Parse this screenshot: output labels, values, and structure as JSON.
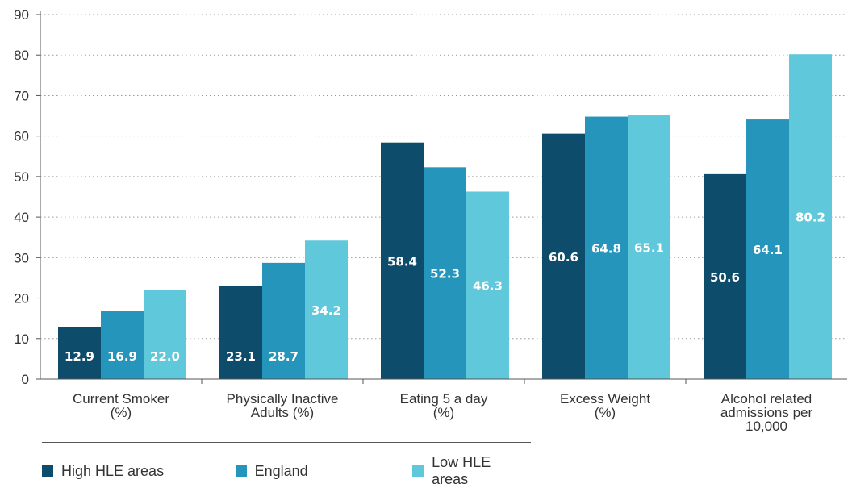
{
  "chart_data": {
    "type": "bar",
    "categories": [
      [
        "Current Smoker",
        "(%)"
      ],
      [
        "Physically Inactive",
        "Adults (%)"
      ],
      [
        "Eating 5 a day",
        "(%)"
      ],
      [
        "Excess Weight",
        "(%)"
      ],
      [
        "Alcohol related",
        "admissions per",
        "10,000"
      ]
    ],
    "series": [
      {
        "name": "High HLE areas",
        "color": "#0d4c6b",
        "values": [
          12.9,
          23.1,
          58.4,
          60.6,
          50.6
        ]
      },
      {
        "name": "England",
        "color": "#2595bb",
        "values": [
          16.9,
          28.7,
          52.3,
          64.8,
          64.1
        ]
      },
      {
        "name": "Low HLE areas",
        "color": "#5fc8da",
        "values": [
          22.0,
          34.2,
          46.3,
          65.1,
          80.2
        ]
      }
    ],
    "ylim": [
      0,
      90
    ],
    "yticks": [
      0,
      10,
      20,
      30,
      40,
      50,
      60,
      70,
      80,
      90
    ],
    "grid": "dotted-horizontal",
    "legend": "bottom"
  }
}
